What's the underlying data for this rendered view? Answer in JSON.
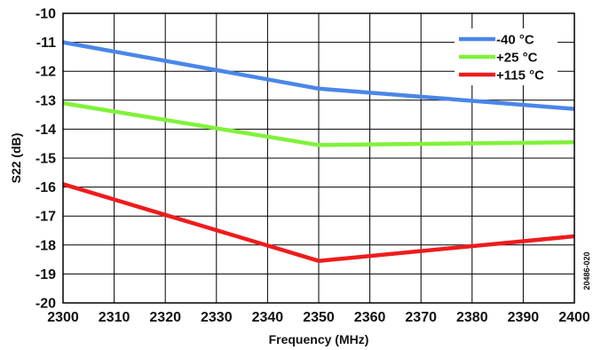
{
  "figure_id": "20486-020",
  "chart_data": {
    "type": "line",
    "xlabel": "Frequency (MHz)",
    "ylabel": "S22 (dB)",
    "xlim": [
      2300,
      2400
    ],
    "ylim": [
      -20,
      -10
    ],
    "x_ticks": [
      2300,
      2310,
      2320,
      2330,
      2340,
      2350,
      2360,
      2370,
      2380,
      2390,
      2400
    ],
    "y_ticks": [
      -10,
      -11,
      -12,
      -13,
      -14,
      -15,
      -16,
      -17,
      -18,
      -19,
      -20
    ],
    "grid": true,
    "legend_position": "top-right",
    "x": [
      2300,
      2350,
      2400
    ],
    "series": [
      {
        "name": "-40 °C",
        "color": "#4a86e8",
        "values": [
          -11.0,
          -12.6,
          -13.3
        ]
      },
      {
        "name": "+25 °C",
        "color": "#80f23a",
        "values": [
          -13.1,
          -14.55,
          -14.45
        ]
      },
      {
        "name": "+115 °C",
        "color": "#ee1c1c",
        "values": [
          -15.9,
          -18.55,
          -17.7
        ]
      }
    ]
  }
}
